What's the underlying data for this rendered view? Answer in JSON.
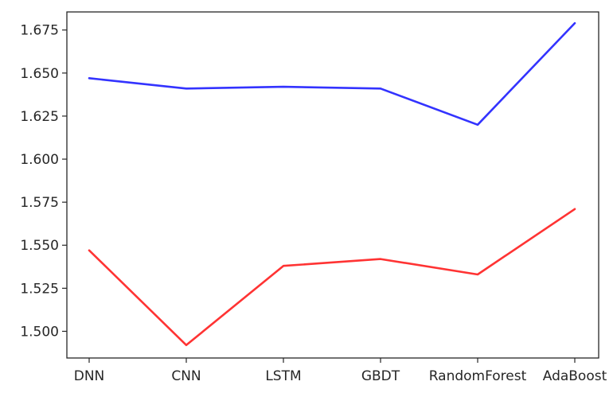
{
  "chart_data": {
    "type": "line",
    "title": "",
    "xlabel": "",
    "ylabel": "",
    "categories": [
      "DNN",
      "CNN",
      "LSTM",
      "GBDT",
      "RandomForest",
      "AdaBoost"
    ],
    "ylim": [
      1.4845,
      1.6855
    ],
    "yticks": [
      1.5,
      1.525,
      1.55,
      1.575,
      1.6,
      1.625,
      1.65,
      1.675
    ],
    "ytick_labels": [
      "1.500",
      "1.525",
      "1.550",
      "1.575",
      "1.600",
      "1.625",
      "1.650",
      "1.675"
    ],
    "grid": false,
    "legend": "none",
    "series": [
      {
        "color": "#3333ff",
        "values": [
          1.647,
          1.641,
          1.642,
          1.641,
          1.62,
          1.679
        ]
      },
      {
        "color": "#ff3333",
        "values": [
          1.547,
          1.492,
          1.538,
          1.542,
          1.533,
          1.571
        ]
      }
    ]
  }
}
